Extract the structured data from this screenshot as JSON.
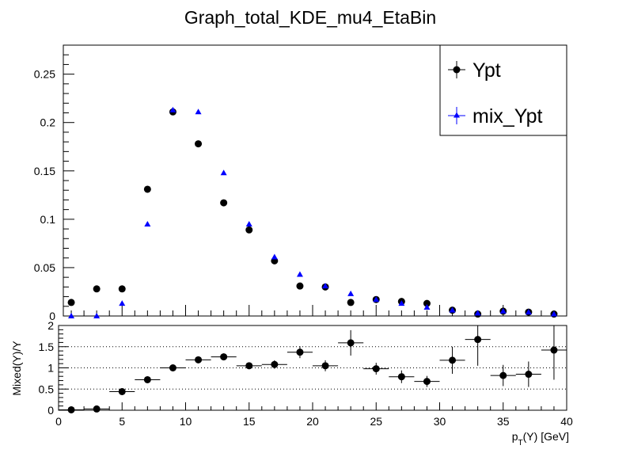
{
  "chart_data": [
    {
      "type": "scatter",
      "title": "Graph_total_KDE_mu4_EtaBin",
      "ylim": [
        0,
        0.28
      ],
      "yticks": [
        "0",
        "0.05",
        "0.1",
        "0.15",
        "0.2",
        "0.25"
      ],
      "legend": {
        "placement": "top-right",
        "entries": [
          "Ypt",
          "mix_Ypt"
        ]
      },
      "series": [
        {
          "name": "Ypt",
          "marker": "circle",
          "color": "#000000",
          "x": [
            1,
            3,
            5,
            7,
            9,
            11,
            13,
            15,
            17,
            19,
            21,
            23,
            25,
            27,
            29,
            31,
            33,
            35,
            37,
            39
          ],
          "y": [
            0.014,
            0.028,
            0.028,
            0.131,
            0.211,
            0.178,
            0.117,
            0.089,
            0.057,
            0.031,
            0.03,
            0.014,
            0.017,
            0.015,
            0.013,
            0.006,
            0.002,
            0.005,
            0.004,
            0.002
          ]
        },
        {
          "name": "mix_Ypt",
          "marker": "triangle",
          "color": "#0000ff",
          "x": [
            1,
            3,
            5,
            7,
            9,
            11,
            13,
            15,
            17,
            19,
            21,
            23,
            25,
            27,
            29,
            31,
            33,
            35,
            37,
            39
          ],
          "y": [
            0.0,
            0.0,
            0.013,
            0.095,
            0.213,
            0.211,
            0.148,
            0.095,
            0.061,
            0.043,
            0.031,
            0.023,
            0.017,
            0.013,
            0.009,
            0.006,
            0.003,
            0.005,
            0.004,
            0.002
          ]
        }
      ]
    },
    {
      "type": "scatter",
      "xlabel": "p_T(Υ) [GeV]",
      "ylabel": "Mixed(Υ)/Υ",
      "xlim": [
        0,
        40
      ],
      "ylim": [
        0,
        2
      ],
      "xticks": [
        "0",
        "5",
        "10",
        "15",
        "20",
        "25",
        "30",
        "35",
        "40"
      ],
      "yticks": [
        "0",
        "0.5",
        "1",
        "1.5",
        "2"
      ],
      "gridlines_y": [
        0.5,
        1,
        1.5
      ],
      "series": [
        {
          "name": "",
          "marker": "circle",
          "color": "#000000",
          "x": [
            1,
            3,
            5,
            7,
            9,
            11,
            13,
            15,
            17,
            19,
            21,
            23,
            25,
            27,
            29,
            31,
            33,
            35,
            37,
            39
          ],
          "xerr": 1,
          "y": [
            0.01,
            0.03,
            0.44,
            0.72,
            1.0,
            1.19,
            1.26,
            1.05,
            1.08,
            1.37,
            1.05,
            1.59,
            0.98,
            0.79,
            0.68,
            1.18,
            1.67,
            0.82,
            0.85,
            1.42
          ],
          "yerr": [
            0.02,
            0.03,
            0.05,
            0.05,
            0.04,
            0.06,
            0.08,
            0.07,
            0.1,
            0.14,
            0.13,
            0.3,
            0.14,
            0.15,
            0.13,
            0.32,
            0.62,
            0.25,
            0.3,
            0.7
          ]
        }
      ]
    }
  ]
}
